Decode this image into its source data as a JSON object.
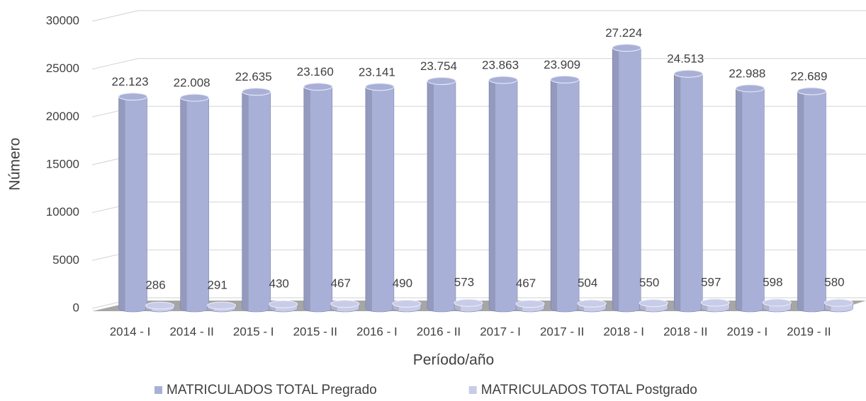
{
  "chart_data": {
    "type": "bar",
    "x_label": "Período/año",
    "y_label": "Número",
    "categories": [
      "2014 - I",
      "2014 - II",
      "2015 - I",
      "2015 - II",
      "2016 - I",
      "2016 - II",
      "2017 - I",
      "2017 - II",
      "2018 - I",
      "2018 - II",
      "2019 - I",
      "2019 - II"
    ],
    "series": [
      {
        "name": "MATRICULADOS TOTAL Pregrado",
        "color": "#a9b0d8",
        "values": [
          22123,
          22008,
          22635,
          23160,
          23141,
          23754,
          23863,
          23909,
          27224,
          24513,
          22988,
          22689
        ],
        "value_labels": [
          "22.123",
          "22.008",
          "22.635",
          "23.160",
          "23.141",
          "23.754",
          "23.863",
          "23.909",
          "27.224",
          "24.513",
          "22.988",
          "22.689"
        ]
      },
      {
        "name": "MATRICULADOS TOTAL Postgrado",
        "color": "#c8cce8",
        "values": [
          286,
          291,
          430,
          467,
          490,
          573,
          467,
          504,
          550,
          597,
          598,
          580
        ]
      }
    ],
    "ylim": [
      0,
      30000
    ],
    "yticks": [
      0,
      5000,
      10000,
      15000,
      20000,
      25000,
      30000
    ],
    "grid": true,
    "legend": "bottom"
  }
}
